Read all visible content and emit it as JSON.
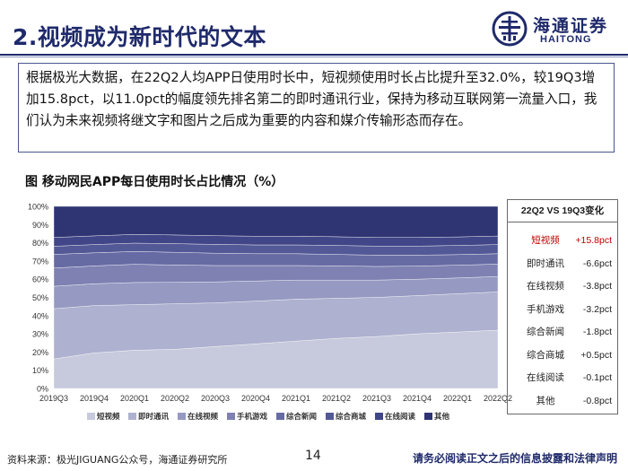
{
  "slide": {
    "title": "2.视频成为新时代的文本",
    "logo_cn": "海通证券",
    "logo_en": "HAITONG",
    "intro_text": "根据极光大数据，在22Q2人均APP日使用时长中，短视频使用时长占比提升至32.0%，较19Q3增加15.8pct，以11.0pct的幅度领先排名第二的即时通讯行业，保持为移动互联网第一流量入口，我们认为未来视频将继文字和图片之后成为重要的内容和媒介传输形态而存在。",
    "chart_title": "图 移动网民APP每日使用时长占比情况（%）",
    "source": "资料来源：极光JIGUANG公众号，海通证券研究所",
    "page_number": "14",
    "disclaimer": "请务必阅读正文之后的信息披露和法律声明"
  },
  "colors": {
    "brand": "#1f2a6b",
    "highlight": "#c00000"
  },
  "chart_data": {
    "type": "area",
    "stacked": true,
    "categories": [
      "2019Q3",
      "2019Q4",
      "2020Q1",
      "2020Q2",
      "2020Q3",
      "2020Q4",
      "2021Q1",
      "2021Q2",
      "2021Q3",
      "2021Q4",
      "2022Q1",
      "2022Q2"
    ],
    "ylim": [
      0,
      100
    ],
    "yticks": [
      "0%",
      "10%",
      "20%",
      "30%",
      "40%",
      "50%",
      "60%",
      "70%",
      "80%",
      "90%",
      "100%"
    ],
    "legend_position": "bottom",
    "series": [
      {
        "name": "短视频",
        "color": "#c7c9dd",
        "values": [
          16.2,
          19.5,
          21.0,
          21.5,
          23.0,
          24.5,
          26.0,
          27.5,
          28.5,
          30.0,
          31.0,
          32.0
        ]
      },
      {
        "name": "即时通讯",
        "color": "#aeb1cf",
        "values": [
          27.6,
          26.0,
          25.0,
          25.0,
          24.0,
          23.5,
          23.0,
          22.0,
          21.5,
          21.0,
          21.0,
          21.0
        ]
      },
      {
        "name": "在线视频",
        "color": "#9699c1",
        "values": [
          12.3,
          12.0,
          12.2,
          11.8,
          11.5,
          11.0,
          10.5,
          10.0,
          9.5,
          9.0,
          8.7,
          8.5
        ]
      },
      {
        "name": "手机游戏",
        "color": "#7e81b2",
        "values": [
          10.0,
          9.8,
          10.0,
          9.5,
          9.0,
          8.5,
          8.0,
          7.8,
          7.5,
          7.2,
          7.0,
          6.8
        ]
      },
      {
        "name": "综合新闻",
        "color": "#676ba4",
        "values": [
          7.5,
          7.2,
          7.0,
          7.0,
          6.8,
          6.5,
          6.5,
          6.3,
          6.2,
          6.0,
          5.8,
          5.7
        ]
      },
      {
        "name": "综合商城",
        "color": "#535896",
        "values": [
          4.5,
          4.5,
          4.6,
          4.7,
          4.8,
          4.8,
          4.8,
          4.9,
          5.0,
          5.0,
          5.0,
          5.0
        ]
      },
      {
        "name": "在线阅读",
        "color": "#404687",
        "values": [
          4.8,
          4.8,
          4.8,
          4.8,
          4.8,
          4.8,
          4.8,
          4.8,
          4.7,
          4.7,
          4.7,
          4.7
        ]
      },
      {
        "name": "其他",
        "color": "#2f3573",
        "values": [
          17.1,
          16.2,
          15.4,
          15.7,
          16.1,
          16.4,
          16.4,
          16.7,
          17.1,
          17.1,
          16.8,
          16.3
        ]
      }
    ],
    "comparison": {
      "header": "22Q2 VS 19Q3变化",
      "rows": [
        {
          "label": "短视频",
          "value": "+15.8pct",
          "highlight": true
        },
        {
          "label": "即时通讯",
          "value": "-6.6pct",
          "highlight": false
        },
        {
          "label": "在线视频",
          "value": "-3.8pct",
          "highlight": false
        },
        {
          "label": "手机游戏",
          "value": "-3.2pct",
          "highlight": false
        },
        {
          "label": "综合新闻",
          "value": "-1.8pct",
          "highlight": false
        },
        {
          "label": "综合商城",
          "value": "+0.5pct",
          "highlight": false
        },
        {
          "label": "在线阅读",
          "value": "-0.1pct",
          "highlight": false
        },
        {
          "label": "其他",
          "value": "-0.8pct",
          "highlight": false
        }
      ]
    }
  }
}
